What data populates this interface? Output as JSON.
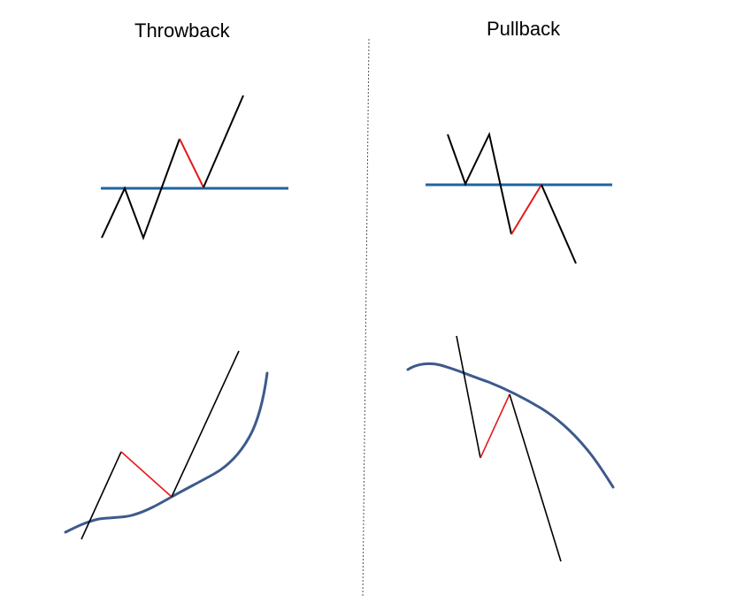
{
  "panels": {
    "left": {
      "title": "Throwback"
    },
    "right": {
      "title": "Pullback"
    }
  },
  "colors": {
    "price_line": "#000000",
    "retrace_segment": "#e41b1b",
    "support_resistance_line": "#1f64a0",
    "moving_average_curve": "#3d5a8c",
    "divider": "#555555"
  }
}
